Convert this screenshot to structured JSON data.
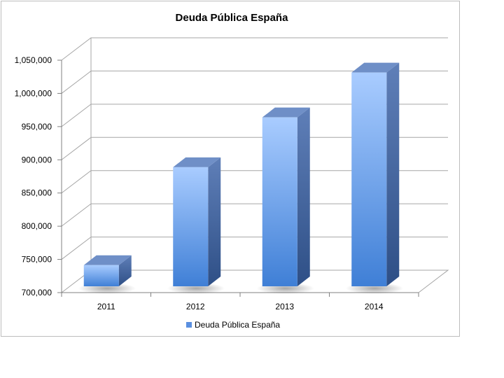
{
  "chart_data": {
    "type": "bar",
    "title": "Deuda Pública España",
    "categories": [
      "2011",
      "2012",
      "2013",
      "2014"
    ],
    "series": [
      {
        "name": "Deuda Pública España",
        "values": [
          743500,
          891000,
          966000,
          1033500
        ]
      }
    ],
    "ylim": [
      700000,
      1050000
    ],
    "yticks": [
      700000,
      750000,
      800000,
      850000,
      900000,
      950000,
      1000000,
      1050000
    ],
    "ytick_labels": [
      "700,000",
      "750,000",
      "800,000",
      "850,000",
      "900,000",
      "950,000",
      "1,000,000",
      "1,050,000"
    ],
    "grid": true,
    "style": "3d-column",
    "legend_position": "bottom",
    "colors": {
      "bar_top": "#a9ccff",
      "bar_bottom": "#3f7fd6",
      "bar_side": "#3d5f9a",
      "bar_cap": "#6f8fc7",
      "grid": "#a6a6a6"
    }
  }
}
